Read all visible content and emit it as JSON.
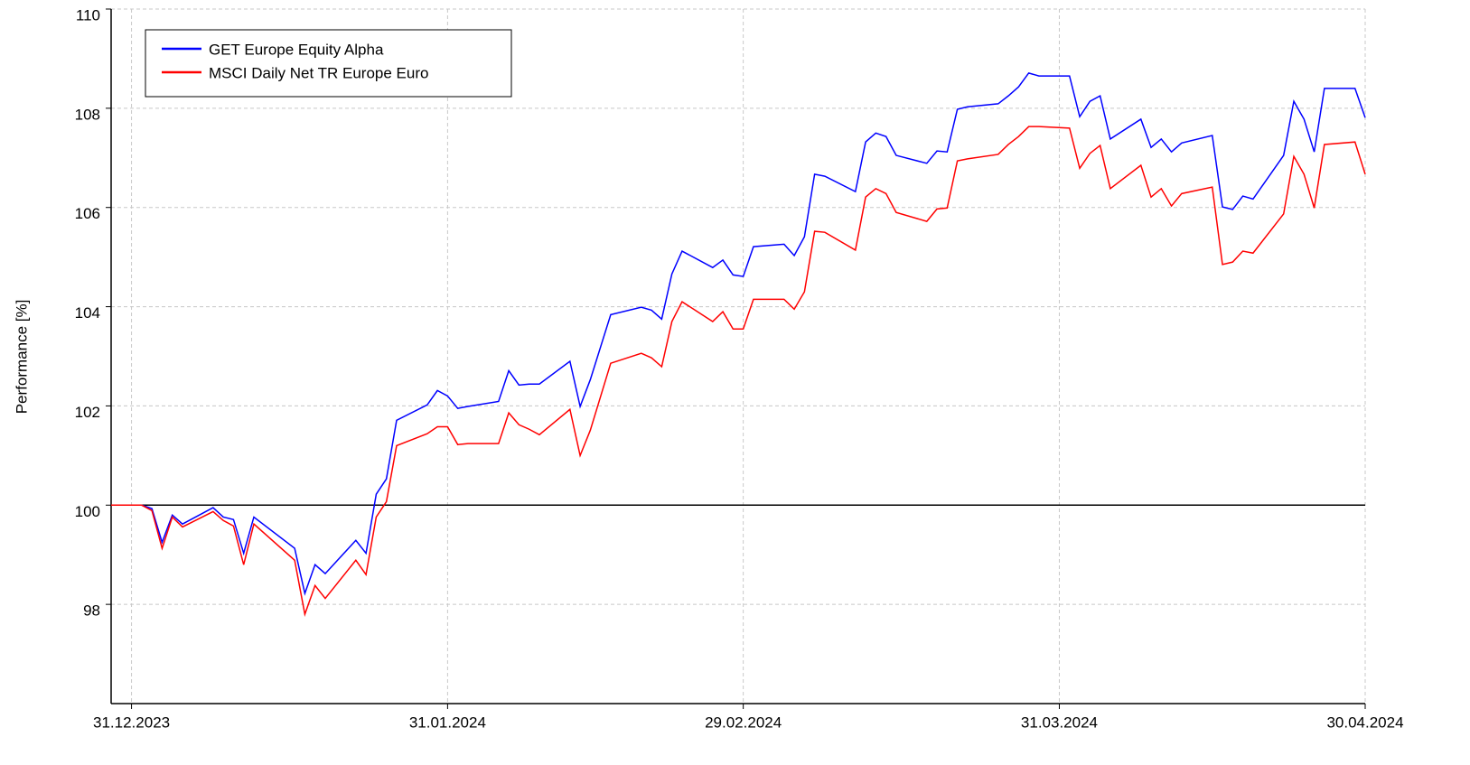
{
  "chart_data": {
    "type": "line",
    "ylabel": "Performance [%]",
    "x": [
      "29.12.2023",
      "01.01.2024",
      "02.01.2024",
      "03.01.2024",
      "04.01.2024",
      "05.01.2024",
      "08.01.2024",
      "09.01.2024",
      "10.01.2024",
      "11.01.2024",
      "12.01.2024",
      "16.01.2024",
      "17.01.2024",
      "18.01.2024",
      "19.01.2024",
      "22.01.2024",
      "23.01.2024",
      "24.01.2024",
      "25.01.2024",
      "26.01.2024",
      "29.01.2024",
      "30.01.2024",
      "31.01.2024",
      "01.02.2024",
      "02.02.2024",
      "05.02.2024",
      "06.02.2024",
      "07.02.2024",
      "08.02.2024",
      "09.02.2024",
      "12.02.2024",
      "13.02.2024",
      "14.02.2024",
      "16.02.2024",
      "19.02.2024",
      "20.02.2024",
      "21.02.2024",
      "22.02.2024",
      "23.02.2024",
      "26.02.2024",
      "27.02.2024",
      "28.02.2024",
      "29.02.2024",
      "01.03.2024",
      "04.03.2024",
      "05.03.2024",
      "06.03.2024",
      "07.03.2024",
      "08.03.2024",
      "11.03.2024",
      "12.03.2024",
      "13.03.2024",
      "14.03.2024",
      "15.03.2024",
      "18.03.2024",
      "19.03.2024",
      "20.03.2024",
      "21.03.2024",
      "22.03.2024",
      "25.03.2024",
      "26.03.2024",
      "27.03.2024",
      "28.03.2024",
      "29.03.2024",
      "01.04.2024",
      "02.04.2024",
      "03.04.2024",
      "04.04.2024",
      "05.04.2024",
      "08.04.2024",
      "09.04.2024",
      "10.04.2024",
      "11.04.2024",
      "12.04.2024",
      "15.04.2024",
      "16.04.2024",
      "17.04.2024",
      "18.04.2024",
      "19.04.2024",
      "22.04.2024",
      "23.04.2024",
      "24.04.2024",
      "25.04.2024",
      "26.04.2024",
      "29.04.2024",
      "30.04.2024"
    ],
    "series": [
      {
        "name": "GET Europe Equity Alpha",
        "color": "#0000ff",
        "values": [
          100,
          100,
          99.93,
          99.25,
          99.8,
          99.62,
          99.95,
          99.76,
          99.71,
          99.03,
          99.76,
          99.13,
          98.22,
          98.8,
          98.62,
          99.29,
          99.03,
          100.22,
          100.53,
          101.71,
          102.02,
          102.31,
          102.2,
          101.95,
          101.99,
          102.09,
          102.71,
          102.42,
          102.44,
          102.44,
          102.9,
          101.99,
          102.53,
          103.84,
          103.99,
          103.93,
          103.75,
          104.66,
          105.12,
          104.79,
          104.94,
          104.64,
          104.61,
          105.21,
          105.26,
          105.03,
          105.41,
          106.67,
          106.63,
          106.32,
          107.32,
          107.5,
          107.43,
          107.05,
          106.89,
          107.14,
          107.12,
          107.98,
          108.03,
          108.09,
          108.25,
          108.43,
          108.71,
          108.65,
          108.65,
          107.83,
          108.14,
          108.25,
          107.38,
          107.78,
          107.21,
          107.38,
          107.12,
          107.3,
          107.45,
          106.01,
          105.96,
          106.23,
          106.17,
          107.05,
          108.14,
          107.78,
          107.12,
          108.4,
          108.4,
          107.81
        ]
      },
      {
        "name": "MSCI Daily Net TR Europe Euro",
        "color": "#ff0000",
        "values": [
          100,
          100,
          99.89,
          99.13,
          99.76,
          99.56,
          99.87,
          99.69,
          99.58,
          98.8,
          99.62,
          98.89,
          97.8,
          98.38,
          98.12,
          98.89,
          98.6,
          99.76,
          100.07,
          101.2,
          101.44,
          101.58,
          101.58,
          101.22,
          101.24,
          101.24,
          101.86,
          101.62,
          101.53,
          101.42,
          101.93,
          101.0,
          101.51,
          102.86,
          103.06,
          102.97,
          102.79,
          103.7,
          104.1,
          103.7,
          103.9,
          103.55,
          103.55,
          104.15,
          104.15,
          103.95,
          104.3,
          105.52,
          105.5,
          105.14,
          106.21,
          106.38,
          106.28,
          105.9,
          105.72,
          105.97,
          105.99,
          106.94,
          106.98,
          107.07,
          107.27,
          107.43,
          107.63,
          107.63,
          107.6,
          106.79,
          107.09,
          107.25,
          106.38,
          106.85,
          106.21,
          106.38,
          106.03,
          106.28,
          106.41,
          104.85,
          104.9,
          105.12,
          105.08,
          105.87,
          107.03,
          106.67,
          105.99,
          107.27,
          107.32,
          106.67
        ]
      }
    ],
    "xlim": [
      "29.12.2023",
      "30.04.2024"
    ],
    "xticks": [
      "31.12.2023",
      "31.01.2024",
      "29.02.2024",
      "31.03.2024",
      "30.04.2024"
    ],
    "ylim": [
      96,
      110
    ],
    "yticks": [
      98,
      100,
      102,
      104,
      106,
      108,
      110
    ],
    "reference_line": 100,
    "grid": true,
    "legend": "upper left"
  }
}
